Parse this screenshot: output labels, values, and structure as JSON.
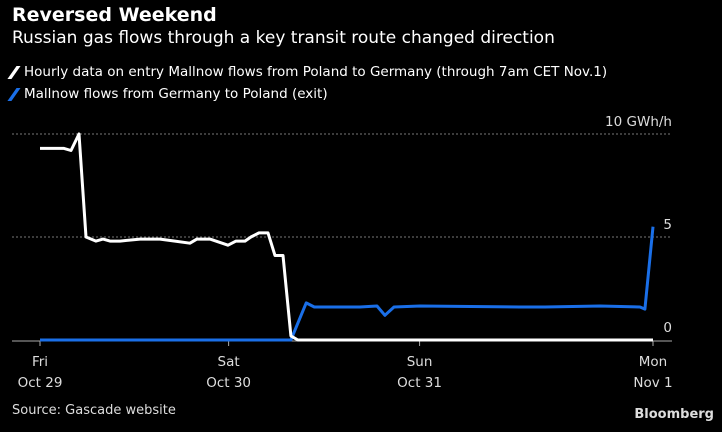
{
  "chart_data": {
    "type": "line",
    "title": "Reversed Weekend",
    "subtitle": "Russian gas flows through a key transit route changed direction",
    "xlabel": "",
    "ylabel": "GWh/h",
    "ylim": [
      0,
      10
    ],
    "xlim_hours": [
      0,
      78
    ],
    "yticks": [
      {
        "value": 10,
        "label": "10 GWh/h"
      },
      {
        "value": 5,
        "label": "5"
      },
      {
        "value": 0,
        "label": "0"
      }
    ],
    "xticks": [
      {
        "hour": 0,
        "line1": "Fri",
        "line2": "Oct 29"
      },
      {
        "hour": 24,
        "line1": "Sat",
        "line2": "Oct 30"
      },
      {
        "hour": 48.3,
        "line1": "Sun",
        "line2": "Oct 31"
      },
      {
        "hour": 78,
        "line1": "Mon",
        "line2": "Nov 1"
      }
    ],
    "grid": true,
    "legend_placement": "top-left",
    "series": [
      {
        "name": "Hourly data on entry Mallnow flows from Poland to Germany (through 7am CET Nov.1)",
        "color": "#ffffff",
        "x": [
          0,
          3.05,
          3.94,
          4.96,
          5.85,
          7.12,
          8.02,
          8.91,
          10.18,
          12.72,
          15.27,
          17.18,
          19.08,
          19.97,
          21.63,
          23.92,
          24.94,
          26.08,
          26.84,
          27.86,
          29.01,
          29.9,
          30.92,
          31.93,
          32.82,
          78
        ],
        "y": [
          9.3,
          9.3,
          9.2,
          10.0,
          5.0,
          4.8,
          4.9,
          4.8,
          4.8,
          4.9,
          4.9,
          4.8,
          4.7,
          4.9,
          4.9,
          4.6,
          4.8,
          4.8,
          5.0,
          5.2,
          5.2,
          4.1,
          4.1,
          0.2,
          0,
          0
        ]
      },
      {
        "name": "Mallnow flows from Germany to Poland (exit)",
        "color": "#1a6fe8",
        "x": [
          0,
          31.93,
          33.87,
          34.9,
          40.71,
          42.88,
          43.89,
          45.04,
          48.35,
          61.07,
          64.25,
          71.25,
          76.34,
          76.97,
          78
        ],
        "y": [
          0,
          0,
          1.8,
          1.6,
          1.6,
          1.65,
          1.2,
          1.6,
          1.65,
          1.6,
          1.6,
          1.65,
          1.6,
          1.5,
          5.5
        ]
      }
    ],
    "source": "Source: Gascade website",
    "logo": "Bloomberg"
  }
}
